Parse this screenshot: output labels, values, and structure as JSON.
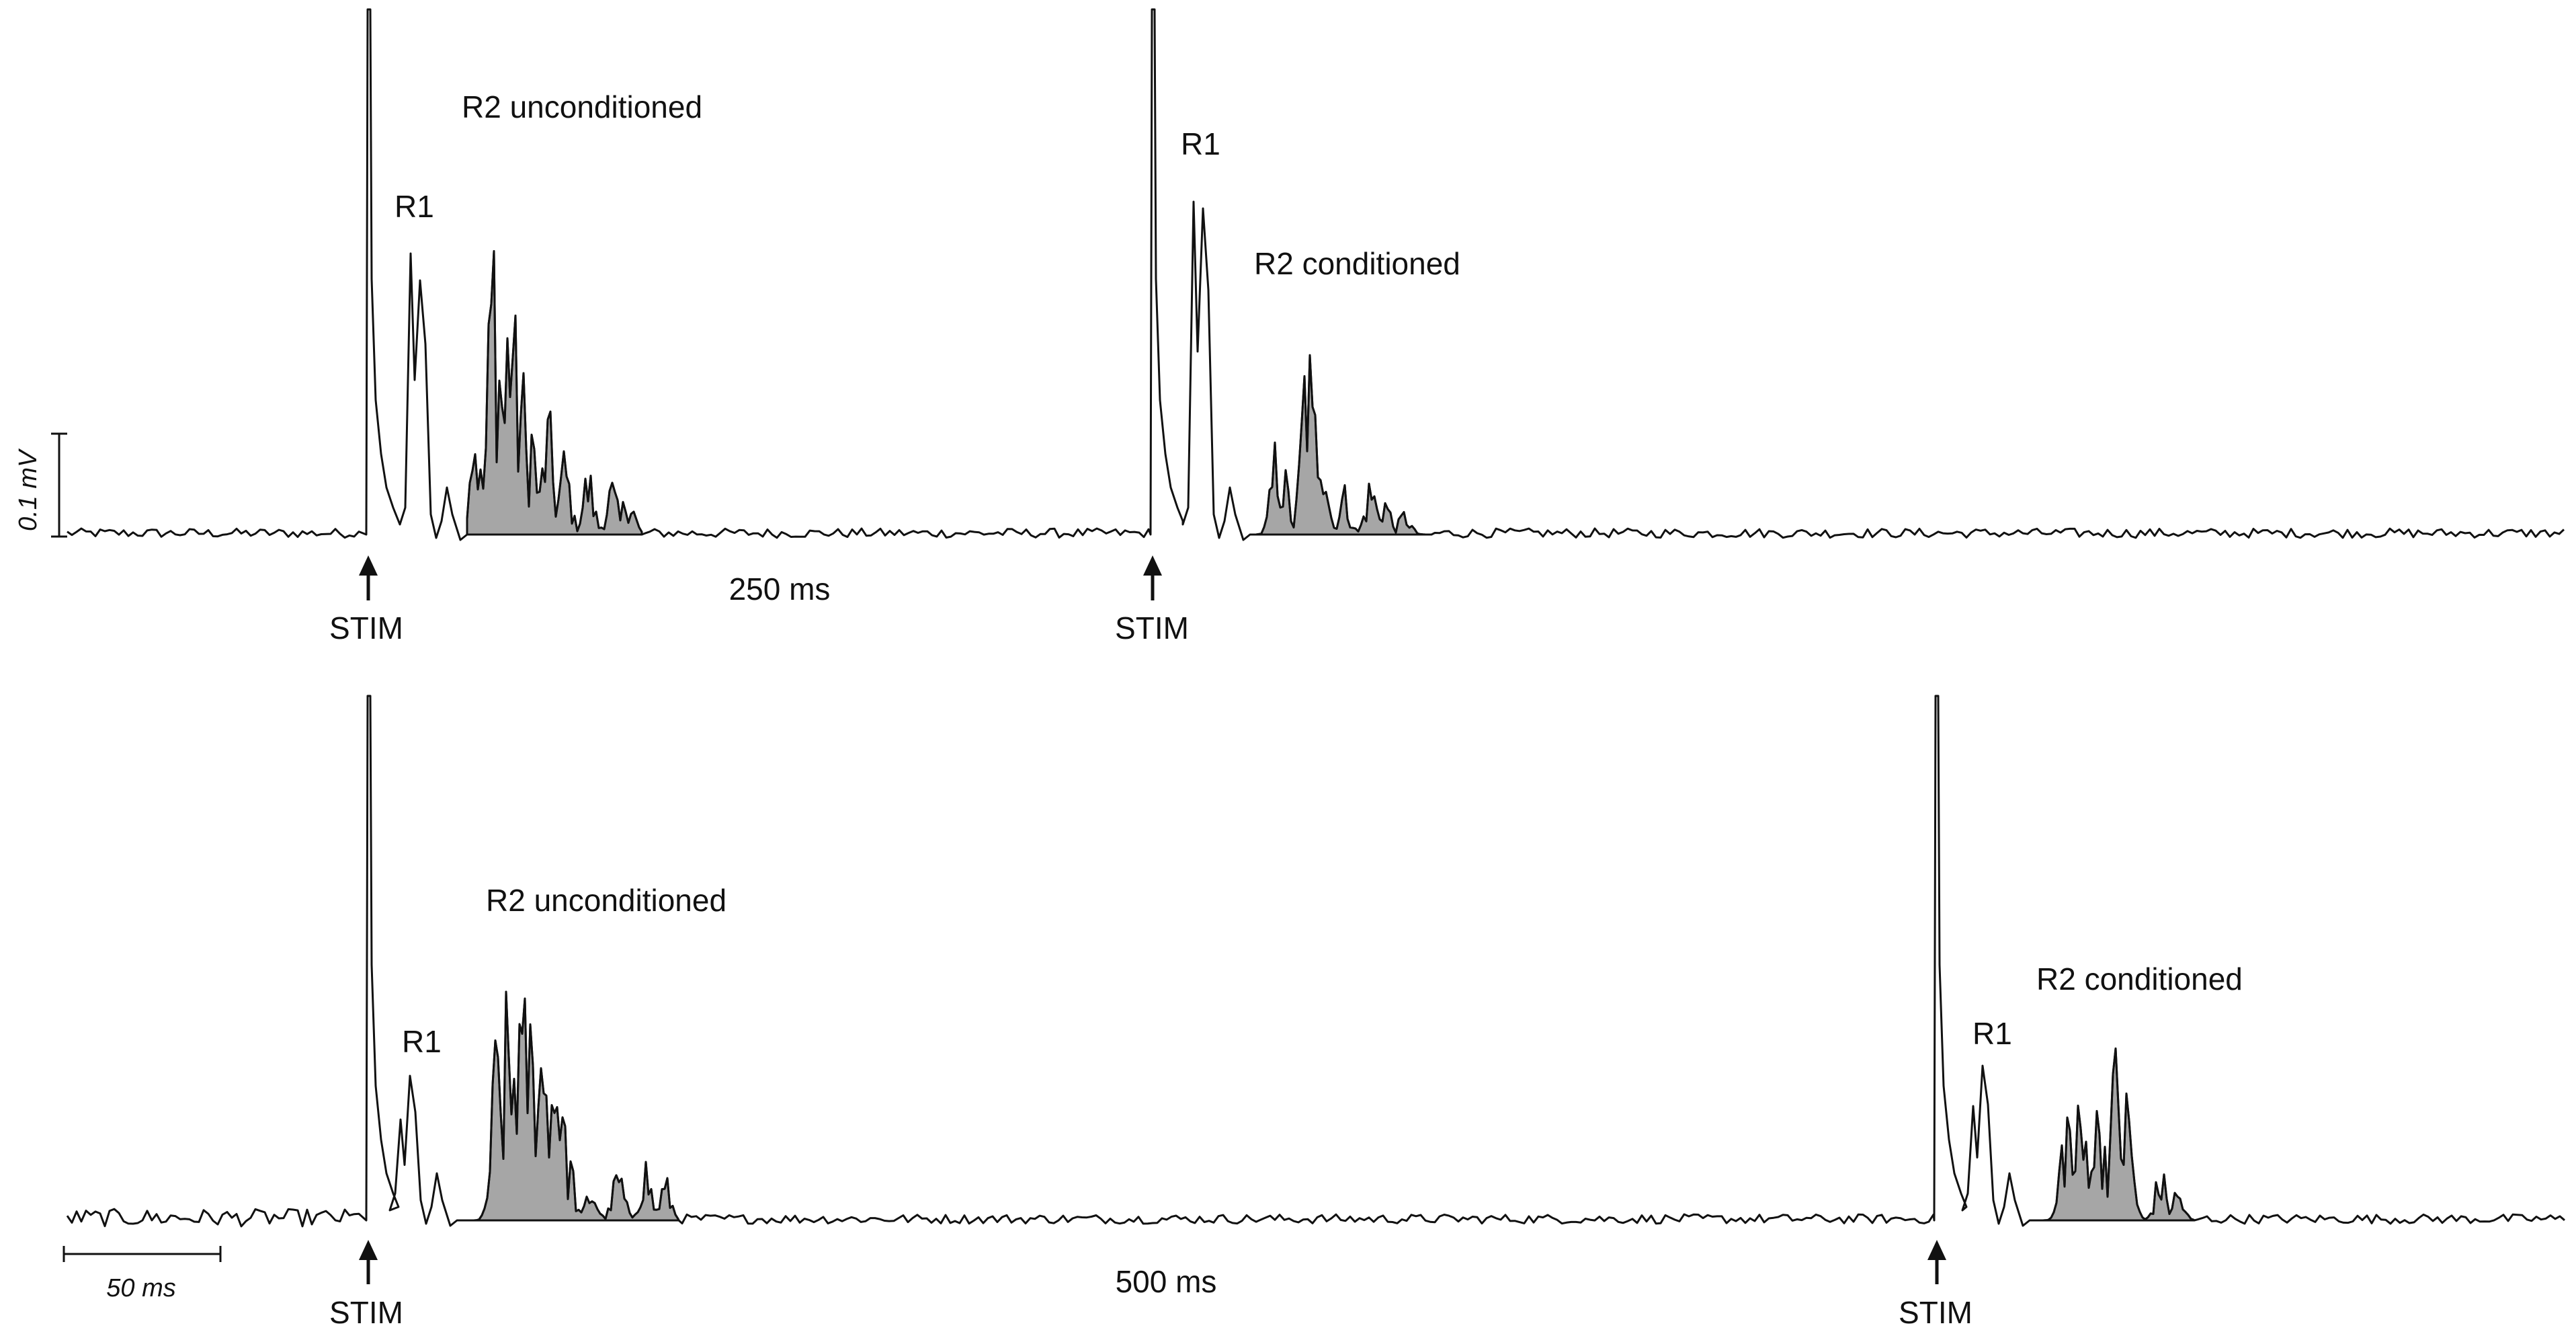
{
  "figure": {
    "traces": [
      {
        "id": "top",
        "interval_label": "250 ms",
        "stimuli": [
          {
            "stim_label": "STIM",
            "r1_label": "R1",
            "r2_label": "R2 unconditioned"
          },
          {
            "stim_label": "STIM",
            "r1_label": "R1",
            "r2_label": "R2 conditioned"
          }
        ]
      },
      {
        "id": "bottom",
        "interval_label": "500 ms",
        "stimuli": [
          {
            "stim_label": "STIM",
            "r1_label": "R1",
            "r2_label": "R2 unconditioned"
          },
          {
            "stim_label": "STIM",
            "r1_label": "R1",
            "r2_label": "R2 conditioned"
          }
        ]
      }
    ],
    "amplitude_scale_label": "0.1 mV",
    "time_scale_label": "50 ms",
    "colors": {
      "trace": "#111111",
      "r2_fill": "#a6a6a6",
      "background": "#ffffff"
    }
  }
}
